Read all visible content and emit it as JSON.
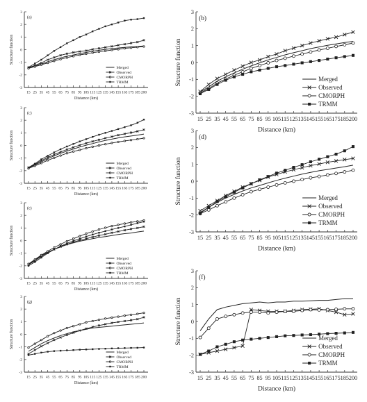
{
  "chart_data": [
    {
      "panel": "(a)",
      "type": "line",
      "x": [
        15,
        25,
        35,
        45,
        55,
        65,
        75,
        85,
        95,
        105,
        115,
        125,
        135,
        145,
        155,
        165,
        175,
        185,
        200
      ],
      "xlabel": "Distance (km)",
      "ylabel": "Structure function",
      "ylim": [
        -3,
        3
      ],
      "series": [
        {
          "name": "Merged",
          "values": [
            -1.45,
            -1.3,
            -1.15,
            -0.95,
            -0.8,
            -0.65,
            -0.52,
            -0.42,
            -0.32,
            -0.22,
            -0.12,
            -0.05,
            0.02,
            0.08,
            0.13,
            0.18,
            0.22,
            0.25,
            0.3
          ]
        },
        {
          "name": "Observed",
          "values": [
            -1.42,
            -1.25,
            -1.05,
            -0.8,
            -0.62,
            -0.45,
            -0.32,
            -0.22,
            -0.15,
            -0.08,
            0.02,
            0.1,
            0.18,
            0.26,
            0.35,
            0.43,
            0.52,
            0.6,
            0.75
          ]
        },
        {
          "name": "CMORPH",
          "values": [
            -1.48,
            -1.35,
            -1.2,
            -1.05,
            -0.9,
            -0.76,
            -0.63,
            -0.52,
            -0.42,
            -0.33,
            -0.24,
            -0.17,
            -0.1,
            -0.03,
            0.03,
            0.1,
            0.15,
            0.2,
            0.25
          ]
        },
        {
          "name": "TRMM",
          "values": [
            -1.4,
            -1.1,
            -0.8,
            -0.45,
            -0.1,
            0.2,
            0.5,
            0.75,
            1.0,
            1.2,
            1.45,
            1.65,
            1.85,
            2.0,
            2.15,
            2.3,
            2.38,
            2.42,
            2.5
          ]
        }
      ]
    },
    {
      "panel": "(b)",
      "type": "line",
      "x": [
        15,
        25,
        35,
        45,
        55,
        65,
        75,
        85,
        95,
        105,
        115,
        125,
        135,
        145,
        155,
        165,
        175,
        185,
        200
      ],
      "xlabel": "Distance (km)",
      "ylabel": "Structure function",
      "ylim": [
        -3,
        3
      ],
      "series": [
        {
          "name": "Merged",
          "values": [
            -1.75,
            -1.45,
            -1.1,
            -0.85,
            -0.62,
            -0.4,
            -0.2,
            -0.02,
            0.15,
            0.3,
            0.45,
            0.58,
            0.7,
            0.82,
            0.92,
            1.02,
            1.1,
            1.18,
            1.25
          ]
        },
        {
          "name": "Observed",
          "values": [
            -1.72,
            -1.3,
            -0.95,
            -0.7,
            -0.45,
            -0.22,
            0.0,
            0.15,
            0.35,
            0.5,
            0.7,
            0.85,
            1.0,
            1.15,
            1.28,
            1.4,
            1.5,
            1.65,
            1.8
          ]
        },
        {
          "name": "CMORPH",
          "values": [
            -1.8,
            -1.55,
            -1.22,
            -0.98,
            -0.75,
            -0.55,
            -0.35,
            -0.18,
            -0.02,
            0.12,
            0.25,
            0.38,
            0.5,
            0.62,
            0.74,
            0.84,
            0.95,
            1.05,
            1.15
          ]
        },
        {
          "name": "TRMM",
          "values": [
            -1.85,
            -1.6,
            -1.3,
            -1.05,
            -0.85,
            -0.7,
            -0.55,
            -0.45,
            -0.35,
            -0.25,
            -0.18,
            -0.1,
            -0.02,
            0.05,
            0.12,
            0.2,
            0.28,
            0.35,
            0.42
          ]
        }
      ]
    },
    {
      "panel": "(c)",
      "type": "line",
      "x": [
        15,
        25,
        35,
        45,
        55,
        65,
        75,
        85,
        95,
        105,
        115,
        125,
        135,
        145,
        155,
        165,
        175,
        185,
        200
      ],
      "xlabel": "Distance (km)",
      "ylabel": "Structure function",
      "ylim": [
        -3,
        3
      ],
      "series": [
        {
          "name": "Merged",
          "values": [
            -1.78,
            -1.55,
            -1.3,
            -1.05,
            -0.82,
            -0.62,
            -0.45,
            -0.28,
            -0.12,
            0.02,
            0.15,
            0.28,
            0.4,
            0.5,
            0.6,
            0.68,
            0.75,
            0.82,
            0.9
          ]
        },
        {
          "name": "Observed",
          "values": [
            -1.75,
            -1.5,
            -1.2,
            -0.95,
            -0.72,
            -0.52,
            -0.32,
            -0.15,
            0.02,
            0.18,
            0.32,
            0.45,
            0.58,
            0.7,
            0.82,
            0.92,
            1.02,
            1.12,
            1.25
          ]
        },
        {
          "name": "CMORPH",
          "values": [
            -1.82,
            -1.62,
            -1.4,
            -1.18,
            -0.98,
            -0.8,
            -0.62,
            -0.48,
            -0.35,
            -0.22,
            -0.1,
            0.0,
            0.1,
            0.2,
            0.28,
            0.36,
            0.43,
            0.5,
            0.58
          ]
        },
        {
          "name": "TRMM",
          "values": [
            -1.75,
            -1.45,
            -1.1,
            -0.82,
            -0.55,
            -0.3,
            -0.08,
            0.12,
            0.32,
            0.5,
            0.68,
            0.85,
            1.0,
            1.15,
            1.3,
            1.45,
            1.6,
            1.8,
            2.05
          ]
        }
      ]
    },
    {
      "panel": "(d)",
      "type": "line",
      "x": [
        15,
        25,
        35,
        45,
        55,
        65,
        75,
        85,
        95,
        105,
        115,
        125,
        135,
        145,
        155,
        165,
        175,
        185,
        200
      ],
      "xlabel": "Distance (km)",
      "ylabel": "Structure function",
      "ylim": [
        -3,
        3
      ],
      "series": [
        {
          "name": "Merged",
          "values": [
            -1.85,
            -1.55,
            -1.25,
            -1.0,
            -0.78,
            -0.58,
            -0.4,
            -0.25,
            -0.1,
            0.05,
            0.18,
            0.3,
            0.42,
            0.52,
            0.62,
            0.7,
            0.78,
            0.86,
            0.95
          ]
        },
        {
          "name": "Observed",
          "values": [
            -1.75,
            -1.45,
            -1.15,
            -0.85,
            -0.6,
            -0.35,
            -0.15,
            0.05,
            0.25,
            0.4,
            0.55,
            0.68,
            0.8,
            0.92,
            1.02,
            1.12,
            1.2,
            1.28,
            1.35
          ]
        },
        {
          "name": "CMORPH",
          "values": [
            -1.92,
            -1.7,
            -1.45,
            -1.22,
            -1.0,
            -0.8,
            -0.62,
            -0.48,
            -0.35,
            -0.22,
            -0.1,
            0.0,
            0.1,
            0.2,
            0.28,
            0.37,
            0.46,
            0.55,
            0.65
          ]
        },
        {
          "name": "TRMM",
          "values": [
            -1.9,
            -1.55,
            -1.2,
            -0.92,
            -0.65,
            -0.4,
            -0.15,
            0.08,
            0.28,
            0.48,
            0.65,
            0.82,
            0.98,
            1.15,
            1.3,
            1.45,
            1.6,
            1.8,
            2.05
          ]
        }
      ]
    },
    {
      "panel": "(e)",
      "type": "line",
      "x": [
        15,
        25,
        35,
        45,
        55,
        65,
        75,
        85,
        95,
        105,
        115,
        125,
        135,
        145,
        155,
        165,
        175,
        185,
        200
      ],
      "xlabel": "Distance (km)",
      "ylabel": "Structure function",
      "ylim": [
        -3,
        3
      ],
      "series": [
        {
          "name": "Merged",
          "values": [
            -1.9,
            -1.55,
            -1.2,
            -0.92,
            -0.7,
            -0.5,
            -0.32,
            -0.18,
            -0.05,
            0.05,
            0.15,
            0.25,
            0.32,
            0.4,
            0.48,
            0.55,
            0.6,
            0.68,
            0.75
          ]
        },
        {
          "name": "Observed",
          "values": [
            -1.92,
            -1.6,
            -1.25,
            -0.95,
            -0.7,
            -0.48,
            -0.3,
            -0.12,
            0.02,
            0.15,
            0.28,
            0.4,
            0.5,
            0.62,
            0.72,
            0.82,
            0.92,
            1.0,
            1.1
          ]
        },
        {
          "name": "CMORPH",
          "values": [
            -1.85,
            -1.5,
            -1.15,
            -0.85,
            -0.55,
            -0.3,
            -0.05,
            0.15,
            0.35,
            0.55,
            0.72,
            0.88,
            1.02,
            1.15,
            1.25,
            1.35,
            1.45,
            1.52,
            1.6
          ]
        },
        {
          "name": "TRMM",
          "values": [
            -2.0,
            -1.7,
            -1.35,
            -1.0,
            -0.7,
            -0.45,
            -0.22,
            -0.02,
            0.15,
            0.32,
            0.48,
            0.62,
            0.75,
            0.88,
            1.0,
            1.12,
            1.25,
            1.38,
            1.5
          ]
        }
      ]
    },
    {
      "panel": "(f)",
      "type": "line",
      "x": [
        15,
        25,
        35,
        45,
        55,
        65,
        75,
        85,
        95,
        105,
        115,
        125,
        135,
        145,
        155,
        165,
        175,
        185,
        200
      ],
      "xlabel": "Distance (km)",
      "ylabel": "Structure function",
      "ylim": [
        -3,
        3
      ],
      "series": [
        {
          "name": "Merged",
          "values": [
            -0.55,
            0.15,
            0.7,
            0.85,
            0.95,
            1.05,
            1.1,
            1.15,
            1.1,
            1.15,
            1.15,
            1.2,
            1.2,
            1.22,
            1.25,
            1.25,
            1.3,
            1.35,
            1.35
          ]
        },
        {
          "name": "Observed",
          "values": [
            -1.95,
            -1.85,
            -1.75,
            -1.65,
            -1.55,
            -1.45,
            0.7,
            0.65,
            0.6,
            0.6,
            0.6,
            0.65,
            0.7,
            0.72,
            0.75,
            0.65,
            0.55,
            0.4,
            0.45
          ]
        },
        {
          "name": "CMORPH",
          "values": [
            -0.95,
            -0.4,
            0.15,
            0.3,
            0.4,
            0.5,
            0.55,
            0.55,
            0.5,
            0.55,
            0.6,
            0.6,
            0.65,
            0.7,
            0.68,
            0.7,
            0.72,
            0.75,
            0.75
          ]
        },
        {
          "name": "TRMM",
          "values": [
            -1.95,
            -1.75,
            -1.5,
            -1.35,
            -1.2,
            -1.1,
            -1.05,
            -1.0,
            -0.95,
            -0.9,
            -0.85,
            -0.83,
            -0.8,
            -0.78,
            -0.75,
            -0.72,
            -0.7,
            -0.68,
            -0.65
          ]
        }
      ]
    },
    {
      "panel": "(g)",
      "type": "line",
      "x": [
        15,
        25,
        35,
        45,
        55,
        65,
        75,
        85,
        95,
        105,
        115,
        125,
        135,
        145,
        155,
        165,
        175,
        185,
        200
      ],
      "xlabel": "Distance (km)",
      "ylabel": "Structure function",
      "ylim": [
        -3,
        3
      ],
      "series": [
        {
          "name": "Merged",
          "values": [
            -1.35,
            -1.05,
            -0.75,
            -0.5,
            -0.3,
            -0.1,
            0.05,
            0.2,
            0.3,
            0.4,
            0.5,
            0.55,
            0.6,
            0.65,
            0.7,
            0.75,
            0.8,
            0.85,
            0.9
          ]
        },
        {
          "name": "Observed",
          "values": [
            -1.55,
            -1.25,
            -0.95,
            -0.7,
            -0.45,
            -0.25,
            -0.05,
            0.12,
            0.3,
            0.45,
            0.58,
            0.7,
            0.8,
            0.9,
            0.98,
            1.05,
            1.12,
            1.2,
            1.35
          ]
        },
        {
          "name": "CMORPH",
          "values": [
            -1.05,
            -0.75,
            -0.45,
            -0.15,
            0.1,
            0.3,
            0.5,
            0.65,
            0.8,
            0.95,
            1.05,
            1.15,
            1.25,
            1.32,
            1.4,
            1.48,
            1.55,
            1.62,
            1.7
          ]
        },
        {
          "name": "TRMM",
          "values": [
            -1.65,
            -1.55,
            -1.45,
            -1.38,
            -1.33,
            -1.3,
            -1.27,
            -1.25,
            -1.22,
            -1.2,
            -1.18,
            -1.16,
            -1.14,
            -1.12,
            -1.1,
            -1.09,
            -1.08,
            -1.07,
            -1.05
          ]
        }
      ]
    }
  ]
}
